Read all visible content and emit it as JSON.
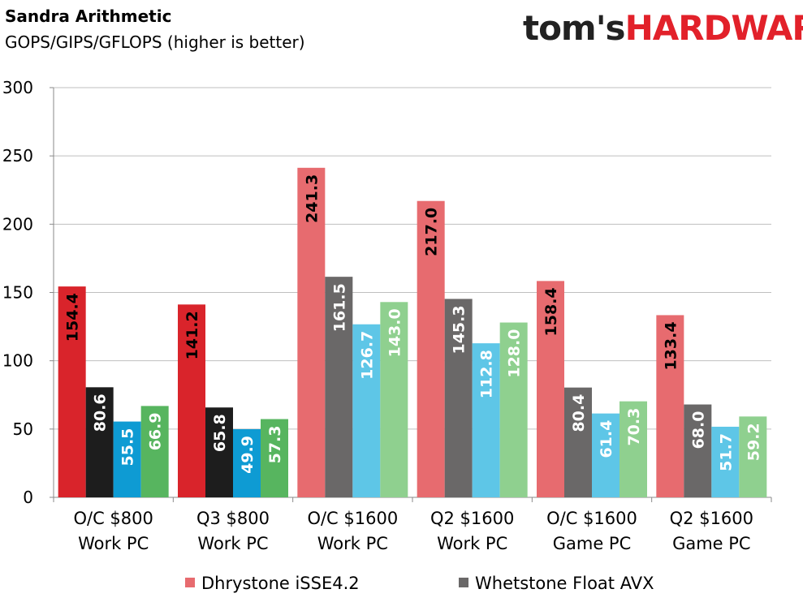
{
  "header": {
    "title": "Sandra Arithmetic",
    "subtitle": "GOPS/GIPS/GFLOPS (higher is better)",
    "logo_part1": "tom's",
    "logo_part2": "HARDWARE"
  },
  "chart_data": {
    "type": "bar",
    "title": "Sandra Arithmetic",
    "subtitle": "GOPS/GIPS/GFLOPS (higher is better)",
    "ylim": [
      0,
      300
    ],
    "yticks": [
      0,
      50,
      100,
      150,
      200,
      250,
      300
    ],
    "grid": true,
    "legend_position": "bottom",
    "categories": [
      [
        "O/C $800",
        "Work PC"
      ],
      [
        "Q3 $800",
        "Work PC"
      ],
      [
        "O/C $1600",
        "Work PC"
      ],
      [
        "Q2 $1600",
        "Work PC"
      ],
      [
        "O/C $1600",
        "Game PC"
      ],
      [
        "Q2 $1600",
        "Game PC"
      ]
    ],
    "series": [
      {
        "name": "Dhrystone iSSE4.2",
        "values": [
          154.4,
          141.2,
          241.3,
          217.0,
          158.4,
          133.4
        ],
        "colors": [
          "#d9242b",
          "#d9242b",
          "#e76b6f",
          "#e76b6f",
          "#e76b6f",
          "#e76b6f"
        ],
        "legend_color": "#e76b6f"
      },
      {
        "name": "Whetstone Float AVX",
        "values": [
          80.6,
          65.8,
          161.5,
          145.3,
          80.4,
          68.0
        ],
        "colors": [
          "#1d1d1d",
          "#1d1d1d",
          "#6a6868",
          "#6a6868",
          "#6a6868",
          "#6a6868"
        ],
        "legend_color": "#6a6868"
      },
      {
        "values": [
          55.5,
          49.9,
          126.7,
          112.8,
          61.4,
          51.7
        ],
        "colors": [
          "#0e9bd3",
          "#0e9bd3",
          "#5ec6e7",
          "#5ec6e7",
          "#5ec6e7",
          "#5ec6e7"
        ]
      },
      {
        "values": [
          66.9,
          57.3,
          143.0,
          128.0,
          70.3,
          59.2
        ],
        "colors": [
          "#57b55f",
          "#57b55f",
          "#8fd08f",
          "#8fd08f",
          "#8fd08f",
          "#8fd08f"
        ]
      }
    ]
  }
}
